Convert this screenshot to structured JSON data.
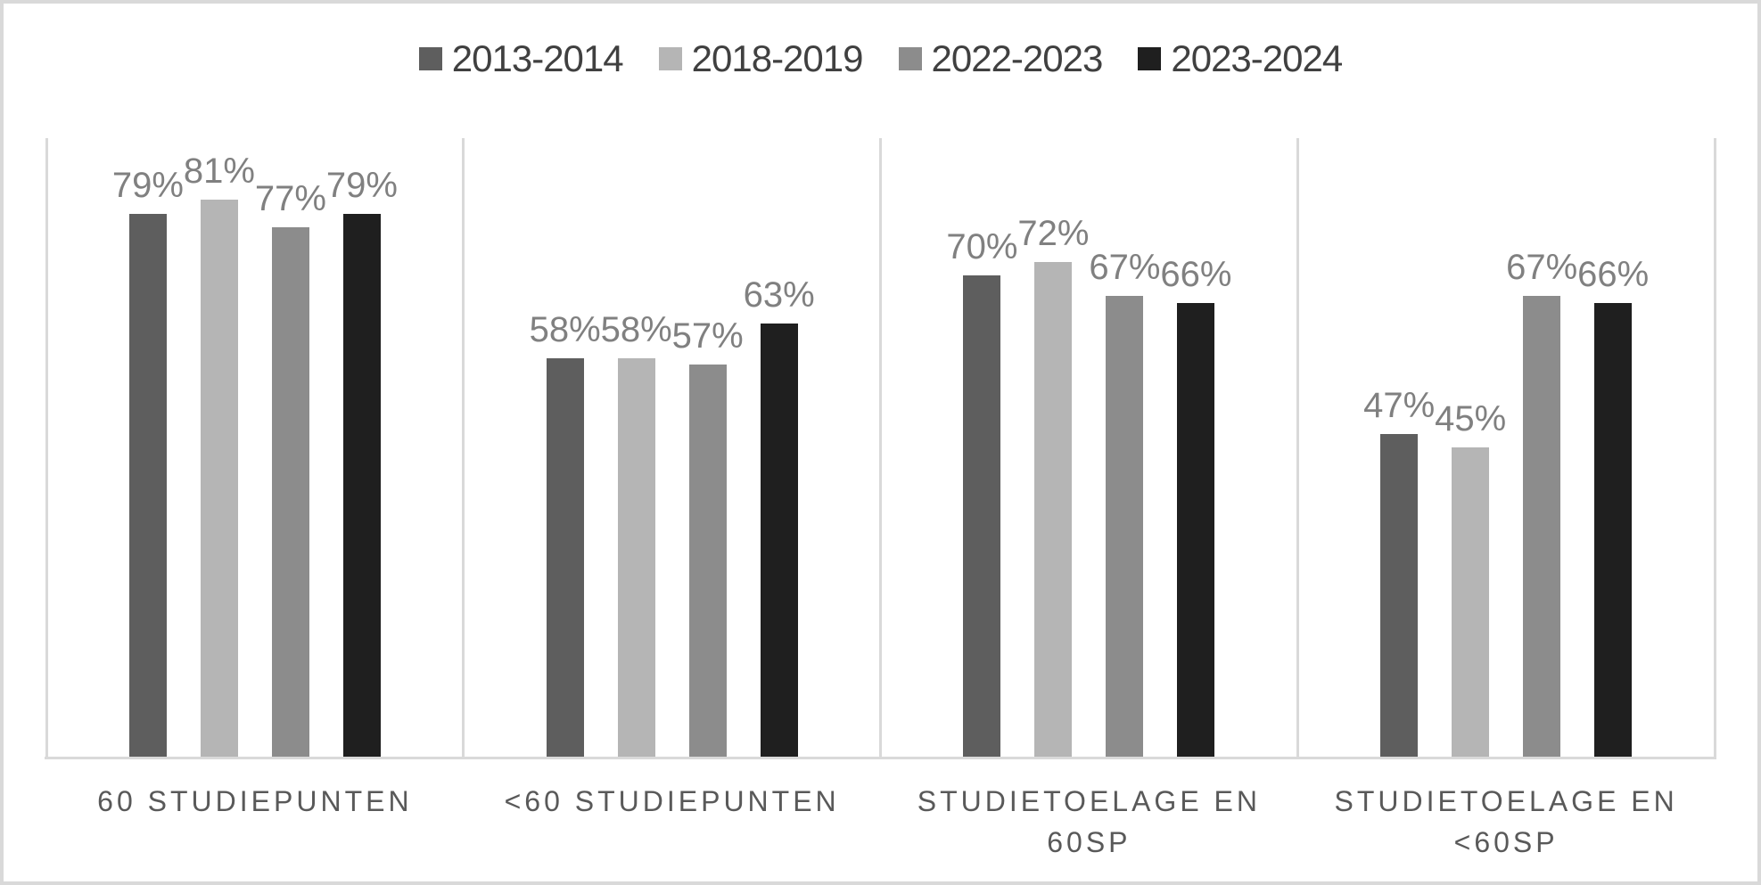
{
  "chart_data": {
    "type": "bar",
    "unit": "%",
    "ylim": [
      0,
      90
    ],
    "legend_position": "top",
    "grid": "vertical panel dividers and bottom axis line only",
    "axis_color": "#d9d9d9",
    "value_label_color": "#808080",
    "category_label_color": "#595959",
    "legend_text_color": "#404040",
    "background_color": "#ffffff",
    "categories": [
      "60 STUDIEPUNTEN",
      "<60 STUDIEPUNTEN",
      "STUDIETOELAGE EN 60SP",
      "STUDIETOELAGE EN <60SP"
    ],
    "category_lines": [
      [
        "60 STUDIEPUNTEN"
      ],
      [
        "<60 STUDIEPUNTEN"
      ],
      [
        "STUDIETOELAGE EN",
        "60SP"
      ],
      [
        "STUDIETOELAGE EN",
        "<60SP"
      ]
    ],
    "series": [
      {
        "name": "2013-2014",
        "color": "#5e5e5e",
        "values": [
          79,
          58,
          70,
          47
        ]
      },
      {
        "name": "2018-2019",
        "color": "#b5b5b5",
        "values": [
          81,
          58,
          72,
          45
        ]
      },
      {
        "name": "2022-2023",
        "color": "#8c8c8c",
        "values": [
          77,
          57,
          67,
          67
        ]
      },
      {
        "name": "2023-2024",
        "color": "#1f1f1f",
        "values": [
          79,
          63,
          66,
          66
        ]
      }
    ]
  }
}
